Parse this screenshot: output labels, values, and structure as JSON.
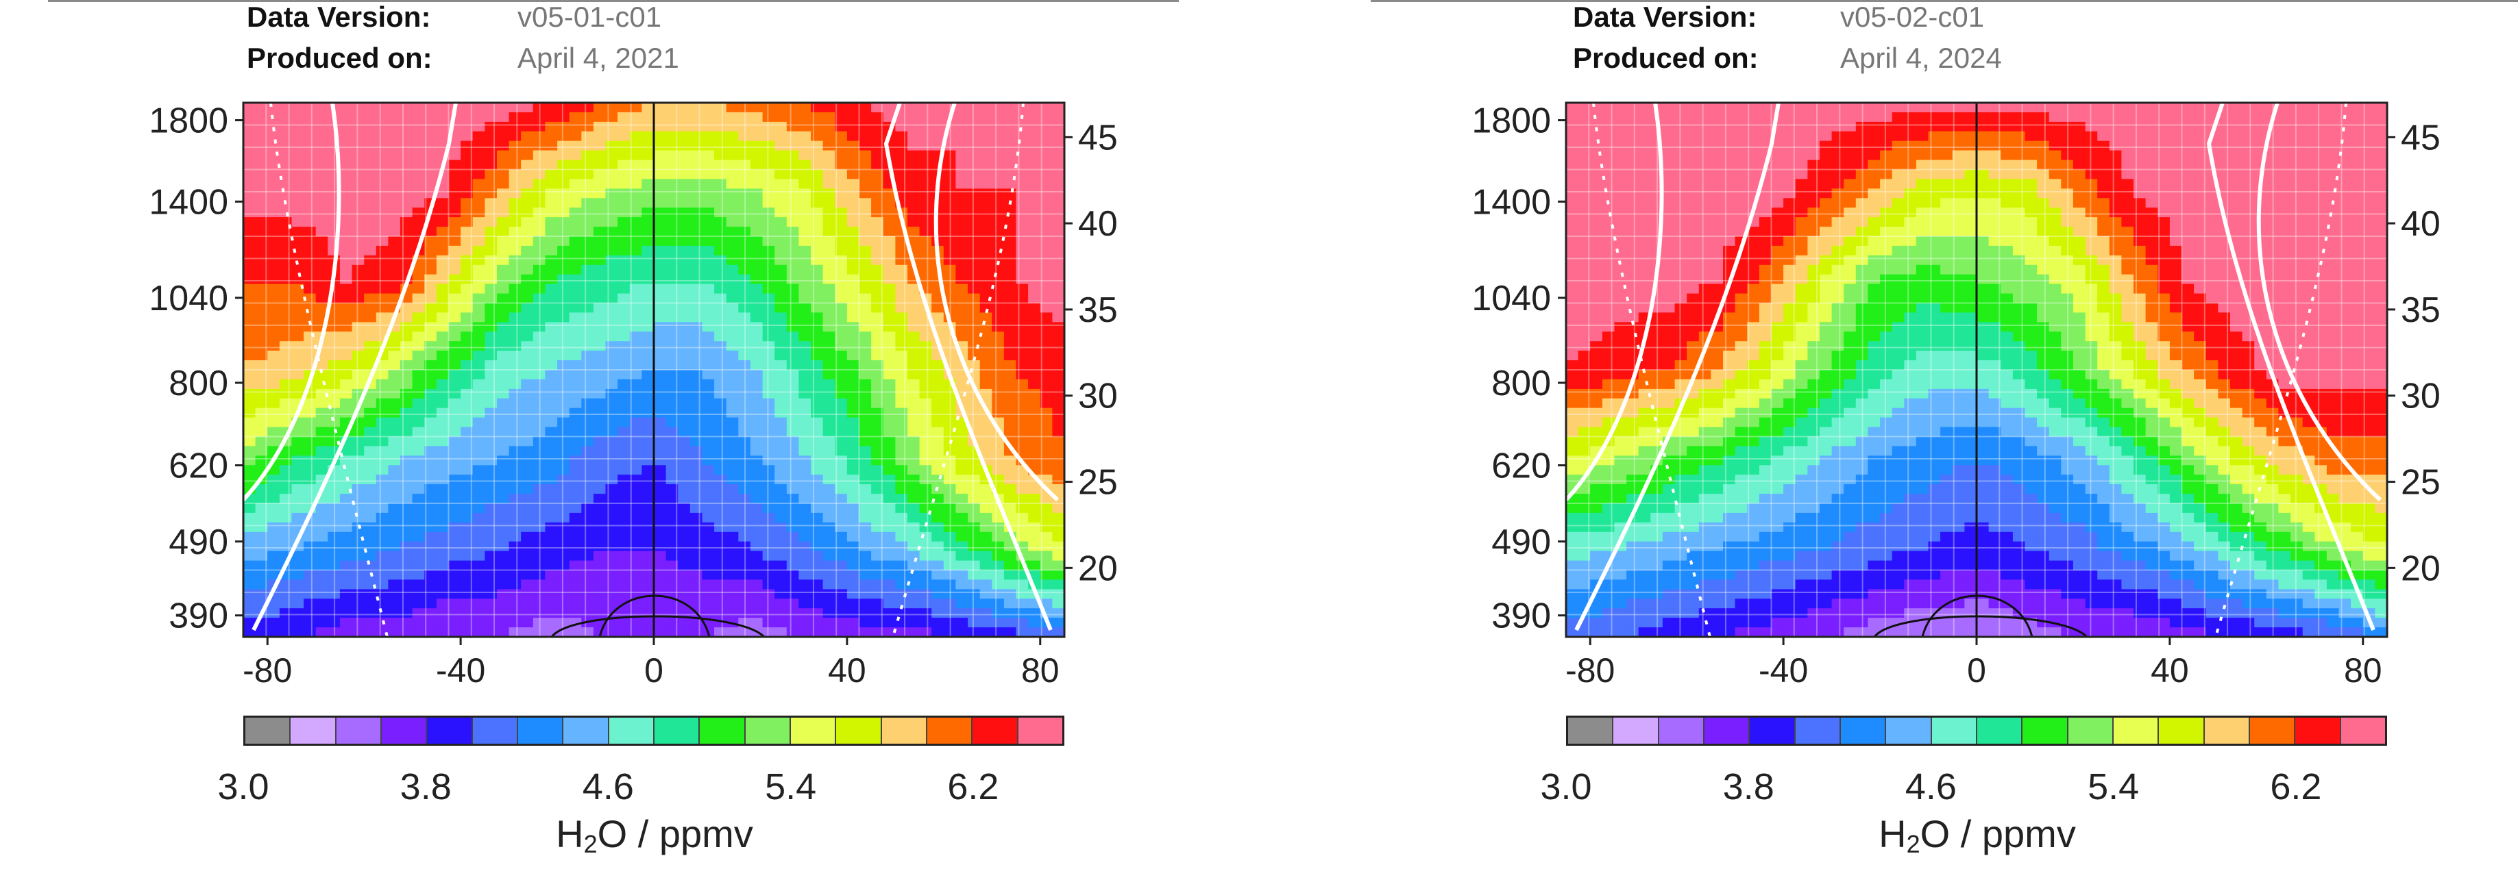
{
  "colors": {
    "scale": [
      "#8c8c8c",
      "#d3a8ff",
      "#a86bff",
      "#7a1fff",
      "#2a12ff",
      "#4b73ff",
      "#1e8cff",
      "#64b4ff",
      "#6cf2cf",
      "#20e698",
      "#22ee18",
      "#80f060",
      "#e6ff50",
      "#d2f500",
      "#ffd070",
      "#ff6a00",
      "#ff0f0f",
      "#ff6b8e"
    ],
    "contour_white": "#ffffff",
    "contour_black": "#111111",
    "grid": "#ffffff"
  },
  "chart_data": [
    {
      "type": "heatmap",
      "meta": {
        "version_label": "Data Version:",
        "version_value": "v05-01-c01",
        "produced_label": "Produced on:",
        "produced_value": "April 4, 2021"
      },
      "x_ticks": [
        "-80",
        "-40",
        "0",
        "40",
        "80"
      ],
      "x_tick_values": [
        -80,
        -40,
        0,
        40,
        80
      ],
      "xlim": [
        -85,
        85
      ],
      "y_left_ticks": [
        "1800",
        "1400",
        "1040",
        "800",
        "620",
        "490",
        "390"
      ],
      "y_left_tick_values": [
        1800,
        1400,
        1040,
        800,
        620,
        490,
        390
      ],
      "y_right_ticks": [
        "45",
        "40",
        "35",
        "30",
        "25",
        "20"
      ],
      "y_right_tick_values": [
        45,
        40,
        35,
        30,
        25,
        20
      ],
      "ylim": [
        365,
        1900
      ],
      "colorbar": {
        "ticks": [
          "3.0",
          "3.8",
          "4.6",
          "5.4",
          "6.2"
        ],
        "tick_values": [
          3.0,
          3.8,
          4.6,
          5.4,
          6.2
        ],
        "range": [
          3.0,
          6.6
        ],
        "title_main": "H",
        "title_sub": "2",
        "title_rest": "O / ppmv"
      },
      "field": [
        [
          6.5,
          6.5,
          6.5,
          6.5,
          6.5,
          6.5,
          6.4,
          6.2,
          6.0,
          6.0,
          6.1,
          6.2,
          6.4,
          6.5,
          6.4,
          6.4,
          6.5
        ],
        [
          6.5,
          6.5,
          6.5,
          6.5,
          6.4,
          6.0,
          5.6,
          5.4,
          5.3,
          5.3,
          5.4,
          5.6,
          6.0,
          6.3,
          6.4,
          6.4,
          6.5
        ],
        [
          6.2,
          6.2,
          6.4,
          6.3,
          5.8,
          5.3,
          5.0,
          4.9,
          4.8,
          4.8,
          5.0,
          5.3,
          5.6,
          6.0,
          6.2,
          6.4,
          6.5
        ],
        [
          6.0,
          5.9,
          5.7,
          5.4,
          5.0,
          4.7,
          4.6,
          4.5,
          4.4,
          4.4,
          4.6,
          4.9,
          5.2,
          5.6,
          5.9,
          6.2,
          6.3
        ],
        [
          5.3,
          5.0,
          4.8,
          4.6,
          4.5,
          4.4,
          4.3,
          4.1,
          4.0,
          4.2,
          4.4,
          4.6,
          4.9,
          5.3,
          5.7,
          6.0,
          6.2
        ],
        [
          4.5,
          4.4,
          4.3,
          4.2,
          4.1,
          4.0,
          3.9,
          3.8,
          3.8,
          3.9,
          4.0,
          4.2,
          4.4,
          4.6,
          4.9,
          5.3,
          5.6
        ],
        [
          3.9,
          3.8,
          3.7,
          3.7,
          3.6,
          3.6,
          3.5,
          3.6,
          3.6,
          3.6,
          3.5,
          3.6,
          3.7,
          3.7,
          3.8,
          3.9,
          4.1
        ]
      ]
    },
    {
      "type": "heatmap",
      "meta": {
        "version_label": "Data Version:",
        "version_value": "v05-02-c01",
        "produced_label": "Produced on:",
        "produced_value": "April 4, 2024"
      },
      "x_ticks": [
        "-80",
        "-40",
        "0",
        "40",
        "80"
      ],
      "x_tick_values": [
        -80,
        -40,
        0,
        40,
        80
      ],
      "xlim": [
        -85,
        85
      ],
      "y_left_ticks": [
        "1800",
        "1400",
        "1040",
        "800",
        "620",
        "490",
        "390"
      ],
      "y_left_tick_values": [
        1800,
        1400,
        1040,
        800,
        620,
        490,
        390
      ],
      "y_right_ticks": [
        "45",
        "40",
        "35",
        "30",
        "25",
        "20"
      ],
      "y_right_tick_values": [
        45,
        40,
        35,
        30,
        25,
        20
      ],
      "ylim": [
        365,
        1900
      ],
      "colorbar": {
        "ticks": [
          "3.0",
          "3.8",
          "4.6",
          "5.4",
          "6.2"
        ],
        "tick_values": [
          3.0,
          3.8,
          4.6,
          5.4,
          6.2
        ],
        "range": [
          3.0,
          6.6
        ],
        "title_main": "H",
        "title_sub": "2",
        "title_rest": "O / ppmv"
      },
      "field": [
        [
          6.5,
          6.5,
          6.5,
          6.5,
          6.5,
          6.5,
          6.5,
          6.5,
          6.5,
          6.5,
          6.5,
          6.5,
          6.5,
          6.5,
          6.5,
          6.5,
          6.5
        ],
        [
          6.5,
          6.5,
          6.5,
          6.5,
          6.5,
          6.3,
          6.0,
          5.7,
          5.6,
          5.7,
          6.1,
          6.4,
          6.5,
          6.5,
          6.5,
          6.5,
          6.5
        ],
        [
          6.5,
          6.5,
          6.5,
          6.4,
          6.1,
          5.6,
          5.2,
          5.1,
          5.2,
          5.3,
          5.5,
          6.0,
          6.4,
          6.5,
          6.5,
          6.5,
          6.5
        ],
        [
          6.4,
          6.3,
          6.2,
          6.0,
          5.6,
          5.2,
          4.9,
          4.7,
          4.7,
          4.9,
          5.2,
          5.6,
          6.0,
          6.3,
          6.5,
          6.5,
          6.5
        ],
        [
          5.6,
          5.4,
          5.2,
          5.0,
          4.8,
          4.6,
          4.4,
          4.3,
          4.2,
          4.3,
          4.5,
          4.8,
          5.2,
          5.6,
          5.9,
          6.1,
          6.1
        ],
        [
          4.7,
          4.6,
          4.5,
          4.4,
          4.3,
          4.2,
          4.1,
          4.0,
          3.9,
          4.0,
          4.1,
          4.3,
          4.5,
          4.8,
          5.1,
          5.4,
          5.6
        ],
        [
          4.1,
          4.0,
          3.9,
          3.8,
          3.7,
          3.6,
          3.5,
          3.4,
          3.4,
          3.5,
          3.6,
          3.6,
          3.7,
          3.8,
          3.9,
          4.0,
          4.3
        ]
      ]
    }
  ]
}
